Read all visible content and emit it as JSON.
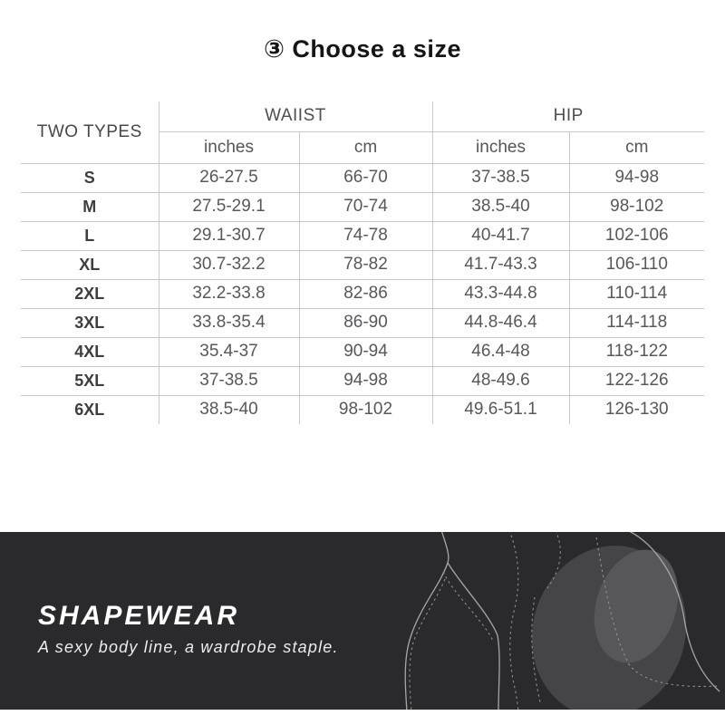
{
  "chart_data": {
    "type": "table",
    "title": "③ Choose a size",
    "corner_header": "TWO TYPES",
    "column_groups": [
      {
        "label": "WAIIST",
        "sub": [
          "inches",
          "cm"
        ]
      },
      {
        "label": "HIP",
        "sub": [
          "inches",
          "cm"
        ]
      }
    ],
    "rows": [
      [
        "S",
        "26-27.5",
        "66-70",
        "37-38.5",
        "94-98"
      ],
      [
        "M",
        "27.5-29.1",
        "70-74",
        "38.5-40",
        "98-102"
      ],
      [
        "L",
        "29.1-30.7",
        "74-78",
        "40-41.7",
        "102-106"
      ],
      [
        "XL",
        "30.7-32.2",
        "78-82",
        "41.7-43.3",
        "106-110"
      ],
      [
        "2XL",
        "32.2-33.8",
        "82-86",
        "43.3-44.8",
        "110-114"
      ],
      [
        "3XL",
        "33.8-35.4",
        "86-90",
        "44.8-46.4",
        "114-118"
      ],
      [
        "4XL",
        "35.4-37",
        "90-94",
        "46.4-48",
        "118-122"
      ],
      [
        "5XL",
        "37-38.5",
        "94-98",
        "48-49.6",
        "122-126"
      ],
      [
        "6XL",
        "38.5-40",
        "98-102",
        "49.6-51.1",
        "126-130"
      ]
    ],
    "grid": true,
    "layout": "corner header spans two rows; WAIIST and HIP each span two unit sub-columns"
  },
  "banner": {
    "brand": "SHAPEWEAR",
    "tagline": "A sexy body line, a wardrobe staple.",
    "bg_color": "#2a2a2c",
    "text_color": "#ffffff",
    "art": "shapewear-body-line-sketch"
  },
  "colors": {
    "page_bg": "#ffffff",
    "title_text": "#151515",
    "table_line": "#c9c9c9",
    "table_text": "#58585a",
    "size_label_text": "#3e3e3e"
  }
}
